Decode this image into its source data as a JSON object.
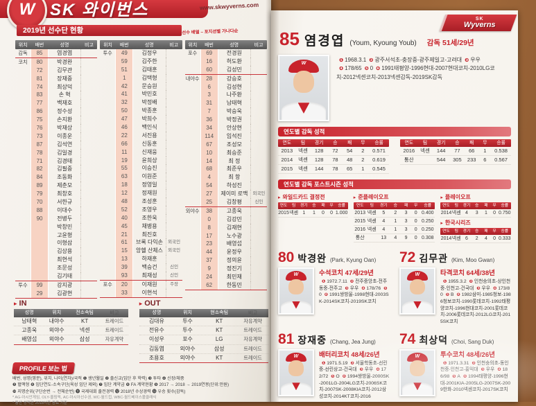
{
  "branding": {
    "banner_title": "SK 와이번스",
    "site_url": "www.skwyverns.com",
    "logo_letter": "W",
    "cap_letter": "W",
    "logo_top": "SK",
    "logo_script": "Wyverns",
    "accent_red": "#c8232c",
    "bullet": "▸"
  },
  "roster": {
    "title": "2019년 선수단 현황",
    "note": "* 선수 배열 – 포지션별 가나다순",
    "headers": [
      "위치",
      "배번",
      "성명",
      "비고"
    ],
    "columns": [
      [
        {
          "p": "감독",
          "n": "85",
          "name": "염경엽",
          "sep": true
        },
        {
          "p": "코치",
          "n": "80",
          "name": "박경완"
        },
        {
          "n": "72",
          "name": "김무관"
        },
        {
          "n": "81",
          "name": "장재중"
        },
        {
          "n": "74",
          "name": "최상덕"
        },
        {
          "n": "83",
          "name": "손 혁"
        },
        {
          "n": "77",
          "name": "백재호"
        },
        {
          "n": "86",
          "name": "정수성"
        },
        {
          "n": "75",
          "name": "손지환"
        },
        {
          "n": "76",
          "name": "박재상"
        },
        {
          "n": "73",
          "name": "이종운"
        },
        {
          "n": "87",
          "name": "김석연"
        },
        {
          "n": "78",
          "name": "김일경"
        },
        {
          "n": "71",
          "name": "김경태"
        },
        {
          "n": "82",
          "name": "김필중"
        },
        {
          "n": "84",
          "name": "조동화"
        },
        {
          "n": "89",
          "name": "제춘모"
        },
        {
          "n": "79",
          "name": "최창호"
        },
        {
          "n": "70",
          "name": "서한규"
        },
        {
          "n": "88",
          "name": "이대수"
        },
        {
          "n": "90",
          "name": "전병두"
        },
        {
          "name": "박창민"
        },
        {
          "name": "고윤형"
        },
        {
          "name": "이형삼"
        },
        {
          "name": "김상용"
        },
        {
          "name": "최현석"
        },
        {
          "name": "조문성"
        },
        {
          "name": "김기태",
          "sep": true
        },
        {
          "p": "투수",
          "n": "99",
          "name": "강지광"
        },
        {
          "n": "29",
          "name": "김광현",
          "sep": true
        }
      ],
      [
        {
          "p": "투수",
          "n": "49",
          "name": "김정우"
        },
        {
          "n": "59",
          "name": "김주한"
        },
        {
          "n": "51",
          "name": "김태훈"
        },
        {
          "n": "1",
          "name": "김택형"
        },
        {
          "n": "42",
          "name": "문승원"
        },
        {
          "n": "41",
          "name": "박민호"
        },
        {
          "n": "32",
          "name": "박정배"
        },
        {
          "n": "50",
          "name": "박종훈"
        },
        {
          "n": "47",
          "name": "박희수"
        },
        {
          "n": "46",
          "name": "백인식"
        },
        {
          "n": "22",
          "name": "서진용"
        },
        {
          "n": "66",
          "name": "신동훈"
        },
        {
          "n": "11",
          "name": "신재웅"
        },
        {
          "n": "19",
          "name": "윤희상"
        },
        {
          "n": "55",
          "name": "이승진"
        },
        {
          "n": "63",
          "name": "이원준"
        },
        {
          "n": "18",
          "name": "정영일"
        },
        {
          "n": "12",
          "name": "정재원"
        },
        {
          "n": "48",
          "name": "조성훈"
        },
        {
          "n": "52",
          "name": "조영우"
        },
        {
          "n": "40",
          "name": "조한욱"
        },
        {
          "n": "45",
          "name": "채병용"
        },
        {
          "n": "21",
          "name": "최진호"
        },
        {
          "n": "61",
          "name": "브록 다익손",
          "note": "외국인"
        },
        {
          "n": "15",
          "name": "앙헬 산체스",
          "note": "외국인"
        },
        {
          "n": "13",
          "name": "하재훈"
        },
        {
          "n": "39",
          "name": "백승건",
          "note": "신인"
        },
        {
          "n": "93",
          "name": "최재성",
          "note": "신인",
          "sep": true
        },
        {
          "p": "포수",
          "n": "20",
          "name": "이재원",
          "note": "주장"
        },
        {
          "n": "33",
          "name": "이현석",
          "sep": true
        }
      ],
      [
        {
          "p": "포수",
          "n": "69",
          "name": "전경원"
        },
        {
          "n": "16",
          "name": "허도환"
        },
        {
          "n": "60",
          "name": "김성민",
          "sep": true
        },
        {
          "p": "내야수",
          "n": "28",
          "name": "강승호"
        },
        {
          "n": "6",
          "name": "김성현"
        },
        {
          "n": "3",
          "name": "나주환"
        },
        {
          "n": "31",
          "name": "남태혁"
        },
        {
          "n": "7",
          "name": "박승욱"
        },
        {
          "n": "36",
          "name": "박정권"
        },
        {
          "n": "34",
          "name": "안상현"
        },
        {
          "n": "114",
          "name": "임석진"
        },
        {
          "n": "67",
          "name": "조성모"
        },
        {
          "n": "10",
          "name": "최승준"
        },
        {
          "n": "14",
          "name": "최 정"
        },
        {
          "n": "68",
          "name": "최준우"
        },
        {
          "n": "4",
          "name": "최 항"
        },
        {
          "n": "54",
          "name": "하성진"
        },
        {
          "n": "27",
          "name": "제이미 로맥",
          "note": "외국인"
        },
        {
          "n": "25",
          "name": "김창평",
          "note": "신인",
          "sep": true
        },
        {
          "p": "외야수",
          "n": "38",
          "name": "고종욱"
        },
        {
          "n": "0",
          "name": "김강민"
        },
        {
          "n": "8",
          "name": "김재현"
        },
        {
          "n": "17",
          "name": "노수광"
        },
        {
          "n": "23",
          "name": "배영섭"
        },
        {
          "n": "44",
          "name": "윤정우"
        },
        {
          "n": "37",
          "name": "정의윤"
        },
        {
          "n": "9",
          "name": "정진기"
        },
        {
          "n": "24",
          "name": "최민재"
        },
        {
          "n": "62",
          "name": "한동민",
          "sep": true
        }
      ]
    ]
  },
  "transfers": {
    "in": {
      "title": "IN",
      "headers": [
        "성명",
        "위치",
        "전소속팀",
        "비고"
      ],
      "rows": [
        [
          "남태혁",
          "내야수",
          "KT",
          "트레이드"
        ],
        [
          "고종욱",
          "외야수",
          "넥센",
          "트레이드"
        ],
        [
          "배영섭",
          "외야수",
          "삼성",
          "자유계약"
        ]
      ]
    },
    "out": {
      "title": "OUT",
      "headers": [
        "성명",
        "위치",
        "현소속팀",
        "비고"
      ],
      "rows": [
        [
          "김대유",
          "투수",
          "KT",
          "자유계약"
        ],
        [
          "전유수",
          "투수",
          "KT",
          "트레이드"
        ],
        [
          "이성우",
          "포수",
          "LG",
          "자유계약"
        ],
        [
          "김동엽",
          "외야수",
          "삼성",
          "트레이드"
        ],
        [
          "조용호",
          "외야수",
          "KT",
          "트레이드"
        ]
      ]
    }
  },
  "profile_legend": {
    "title": "PROFILE 보는 법",
    "top_line": "배번, 성명(영문), 위치, 나이(연차)/국적 ❶ 생년월일 ❷ 출신교(입단 후 학력) ❸ 투타 ❹ 신장/체중",
    "line1": "❺ 혈액형 ❻ 입단연도-소속구단(육성 입단 제외) ❼ 입단 계약금 ❽ FA 계약현황 ❾ 2017 → 2018 → 2019연봉(단위:만원)",
    "line2": "❿ 지명순위(구단순번 → 전체순번) ⓫ 국제대회 출전경력 ⓬ 2018년 수상경력 ⓭ 우승 횟수(감독)",
    "footnote1": "* AG-아시안게임, OLY-올림픽, AC-아시아선수권, WC-월드컵, WBC-월드베이스볼클래식",
    "footnote2": "* 통산 성적은 2018시즌 종료 기준"
  },
  "manager": {
    "number": "85",
    "name": "염경엽",
    "eng": "(Youm, Kyoung Youb)",
    "role": "감독",
    "age": "51세/29년",
    "details": [
      [
        "❶",
        "1968.3.1"
      ],
      [
        "❷",
        "광주서석초-충장중-광주제일고-고려대"
      ],
      [
        "❸",
        "우우"
      ],
      [
        "❹",
        "178/65"
      ],
      [
        "❺",
        "0"
      ],
      [
        "❻",
        "1991태평양-1996현대-2007현대코치-2010LG코치-2012넥센코치-2013넥센감독-2019SK감독"
      ]
    ],
    "season_title": "연도별 감독 성적",
    "stat_headers": [
      "연도",
      "팀",
      "경기",
      "승",
      "패",
      "무",
      "승률"
    ],
    "season_left": [
      [
        "2013",
        "넥센",
        "128",
        "72",
        "54",
        "2",
        "0.571"
      ],
      [
        "2014",
        "넥센",
        "128",
        "78",
        "48",
        "2",
        "0.619"
      ],
      [
        "2015",
        "넥센",
        "144",
        "78",
        "65",
        "1",
        "0.545"
      ]
    ],
    "season_right": [
      [
        "2016",
        "넥센",
        "144",
        "77",
        "66",
        "1",
        "0.538"
      ],
      [
        "통산",
        "",
        "544",
        "305",
        "233",
        "6",
        "0.567"
      ]
    ],
    "post_title": "연도별 감독 포스트시즌 성적",
    "post_tables": [
      {
        "name": "와일드카드 결정전",
        "col": "a",
        "rows": [
          [
            "2015",
            "넥센",
            "1",
            "1",
            "0",
            "0",
            "1.000"
          ]
        ]
      },
      {
        "name": "준플레이오프",
        "col": "b",
        "rows": [
          [
            "2013",
            "넥센",
            "5",
            "2",
            "3",
            "0",
            "0.400"
          ],
          [
            "2015",
            "넥센",
            "4",
            "1",
            "3",
            "0",
            "0.250"
          ],
          [
            "2016",
            "넥센",
            "4",
            "1",
            "3",
            "0",
            "0.250"
          ],
          [
            "통산",
            "",
            "13",
            "4",
            "9",
            "0",
            "0.308"
          ]
        ]
      },
      {
        "name": "플레이오프",
        "col": "c",
        "rows": [
          [
            "2014",
            "넥센",
            "4",
            "3",
            "1",
            "0",
            "0.750"
          ]
        ]
      },
      {
        "name": "한국시리즈",
        "col": "c",
        "rows": [
          [
            "2014",
            "넥센",
            "6",
            "2",
            "4",
            "0",
            "0.333"
          ]
        ]
      }
    ]
  },
  "coaches": [
    {
      "number": "80",
      "name": "박경완",
      "eng": "(Park, Kyung Oan)",
      "role": "수석코치",
      "age": "47세/29년",
      "details": [
        [
          "❶",
          "1972.7.11"
        ],
        [
          "❷",
          "전주중앙초-전주동중-전주고"
        ],
        [
          "❸",
          "우우"
        ],
        [
          "❹",
          "178/76"
        ],
        [
          "❺",
          "0"
        ],
        [
          "❻",
          "1991쌍방울-1998현대-2003SK-2014SK코치-2019SK코치"
        ]
      ]
    },
    {
      "number": "72",
      "name": "김무관",
      "eng": "(Kim, Moo Gwan)",
      "role": "타격코치",
      "age": "64세/38년",
      "details": [
        [
          "❶",
          "1955.3.2"
        ],
        [
          "❷",
          "인천숭의초-상인천중-인천고-건국대"
        ],
        [
          "❸",
          "우우"
        ],
        [
          "❹",
          "173/80"
        ],
        [
          "❺",
          "B"
        ],
        [
          "❻",
          "1982삼미-1985청보-1986청보코치-1990롯데코치-1992태평양코치-1996현대코치-2001롯데코치-2006롯데코치-2012LG코치-2015SK코치"
        ]
      ]
    },
    {
      "number": "81",
      "name": "장재중",
      "eng": "(Chang, Jea Jung)",
      "role": "배터리코치",
      "age": "48세/26년",
      "details": [
        [
          "❶",
          "1971.5.19"
        ],
        [
          "❷",
          "서울학동초-선린중-선린상고-건국대"
        ],
        [
          "❸",
          "우우"
        ],
        [
          "❹",
          "172/72"
        ],
        [
          "❺",
          "O"
        ],
        [
          "❻",
          "1994쌍방울-2000SK-2001LG-2004LG코치-2006SK코치-2007SK-2008KIA코치-2012삼성코치-2014KT코치-2016"
        ]
      ]
    },
    {
      "number": "74",
      "name": "최상덕",
      "eng": "(Choi, Sang Duk)",
      "role": "투수코치",
      "age": "48세/26년",
      "details": [
        [
          "❶",
          "1971.3.31"
        ],
        [
          "❷",
          "인천숭의초-동인천중-인천고-홍익대"
        ],
        [
          "❸",
          "우우"
        ],
        [
          "❹",
          "186/98"
        ],
        [
          "❺",
          "A"
        ],
        [
          "❻",
          "1994태평양-1996현대-2001KIA-2005LG-2007SK-2009한화-2010넥센코치-2017SK코치"
        ]
      ]
    }
  ]
}
